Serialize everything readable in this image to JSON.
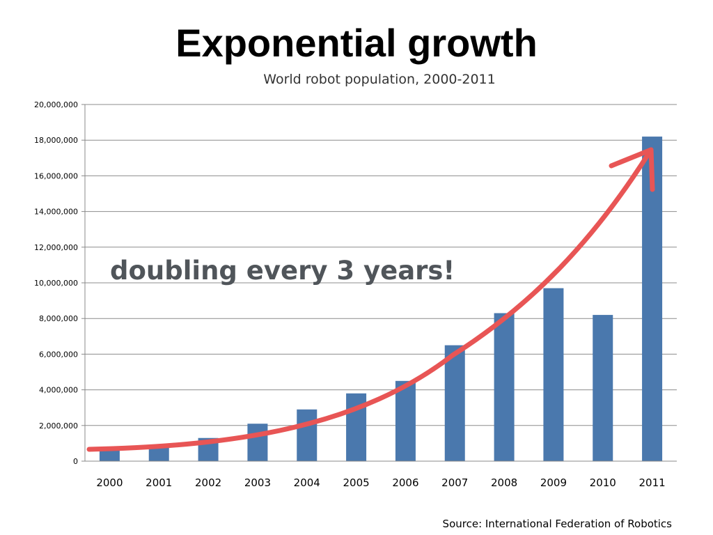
{
  "slide": {
    "title": "Exponential growth"
  },
  "chart_data": {
    "type": "bar",
    "title": "World robot population, 2000-2011",
    "categories": [
      "2000",
      "2001",
      "2002",
      "2003",
      "2004",
      "2005",
      "2006",
      "2007",
      "2008",
      "2009",
      "2010",
      "2011"
    ],
    "values": [
      600000,
      800000,
      1300000,
      2100000,
      2900000,
      3800000,
      4500000,
      6500000,
      8300000,
      9700000,
      8200000,
      18200000
    ],
    "ylim": [
      0,
      20000000
    ],
    "y_ticks": [
      "0",
      "2,000,000",
      "4,000,000",
      "6,000,000",
      "8,000,000",
      "10,000,000",
      "12,000,000",
      "14,000,000",
      "16,000,000",
      "18,000,000",
      "20,000,000"
    ],
    "xlabel": "",
    "ylabel": "",
    "grid": true,
    "bar_color": "#4a78ad",
    "annotation": "doubling every 3 years!",
    "trend_arrow_color": "#e85555",
    "source": "Source: International Federation of Robotics"
  }
}
